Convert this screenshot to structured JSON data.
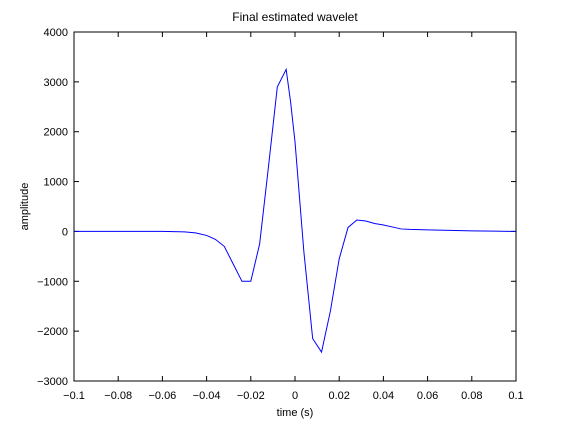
{
  "chart_data": {
    "type": "line",
    "title": "Final estimated wavelet",
    "xlabel": "time (s)",
    "ylabel": "amplitude",
    "xlim": [
      -0.1,
      0.1
    ],
    "ylim": [
      -3000,
      4000
    ],
    "grid": false,
    "legend": "none",
    "xticks": [
      -0.1,
      -0.08,
      -0.06,
      -0.04,
      -0.02,
      0,
      0.02,
      0.04,
      0.06,
      0.08,
      0.1
    ],
    "xtick_labels": [
      "-0.1",
      "-0.08",
      "-0.06",
      "-0.04",
      "-0.02",
      "0",
      "0.02",
      "0.04",
      "0.06",
      "0.08",
      "0.1"
    ],
    "yticks": [
      -3000,
      -2000,
      -1000,
      0,
      1000,
      2000,
      3000,
      4000
    ],
    "ytick_labels": [
      "-3000",
      "-2000",
      "-1000",
      "0",
      "1000",
      "2000",
      "3000",
      "4000"
    ],
    "line_color": "#0000ff",
    "series": [
      {
        "x": [
          -0.1,
          -0.09,
          -0.08,
          -0.07,
          -0.06,
          -0.05,
          -0.045,
          -0.04,
          -0.036,
          -0.032,
          -0.028,
          -0.024,
          -0.02,
          -0.016,
          -0.012,
          -0.008,
          -0.004,
          -0.002,
          0.0,
          0.004,
          0.008,
          0.012,
          0.016,
          0.02,
          0.024,
          0.028,
          0.032,
          0.036,
          0.04,
          0.044,
          0.048,
          0.052,
          0.06,
          0.07,
          0.08,
          0.09,
          0.1
        ],
        "y": [
          0,
          0,
          0,
          0,
          0,
          -10,
          -30,
          -80,
          -160,
          -300,
          -650,
          -1000,
          -1000,
          -250,
          1300,
          2900,
          3250,
          2600,
          1800,
          -400,
          -2150,
          -2420,
          -1600,
          -550,
          80,
          230,
          210,
          160,
          130,
          90,
          50,
          40,
          30,
          20,
          10,
          5,
          0
        ]
      }
    ]
  }
}
